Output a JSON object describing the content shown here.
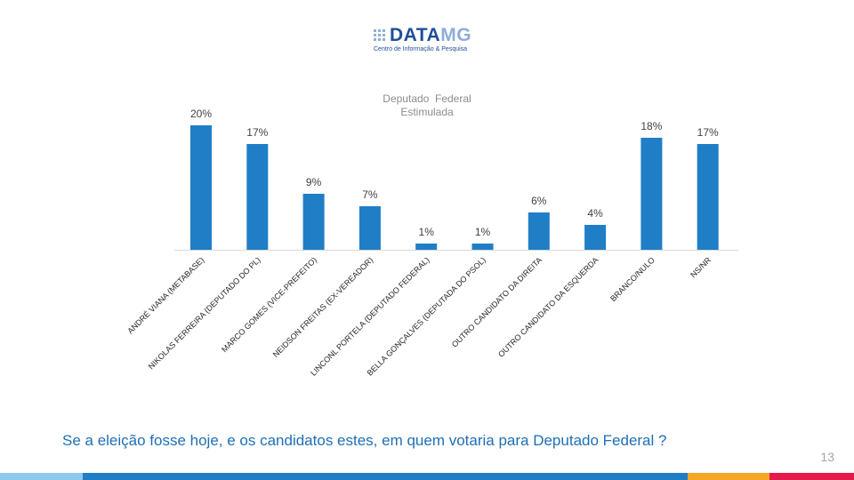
{
  "logo": {
    "brand_main": "DATA",
    "brand_accent": "MG",
    "tagline": "Centro de Informação & Pesquisa"
  },
  "chart_title": {
    "line1": "Deputado  Federal",
    "line2": "Estimulada"
  },
  "question": "Se a eleição fosse hoje, e os candidatos estes, em quem votaria para Deputado Federal ?",
  "page_number": "13",
  "colors": {
    "bar": "#1f7ec6",
    "accent": "#1f6fb5",
    "footer": [
      "#8ec9ee",
      "#1f7ec6",
      "#f5a623",
      "#e6194b"
    ]
  },
  "chart_data": {
    "type": "bar",
    "title": "Deputado  Federal Estimulada",
    "categories": [
      "ANDRÉ VIANA (METABASE)",
      "NIKOLAS FERREIRA (DEPUTADO DO PL)",
      "MARCO GOMES (VICE-PREFEITO)",
      "NEIDSON FREITAS (EX-VEREADOR)",
      "LINCONL PORTELA (DEPUTADO FEDERAL)",
      "BELLA GONÇALVES (DEPUTADA DO PSOL)",
      "OUTRO CANDIDATO DA DIREITA",
      "OUTRO CANDIDATO DA ESQUERDA",
      "BRANCO/NULO",
      "NS/NR"
    ],
    "values": [
      20,
      17,
      9,
      7,
      1,
      1,
      6,
      4,
      18,
      17
    ],
    "value_labels": [
      "20%",
      "17%",
      "9%",
      "7%",
      "1%",
      "1%",
      "6%",
      "4%",
      "18%",
      "17%"
    ],
    "ylim": [
      0,
      20
    ],
    "grid": false,
    "xlabel": "",
    "ylabel": ""
  }
}
